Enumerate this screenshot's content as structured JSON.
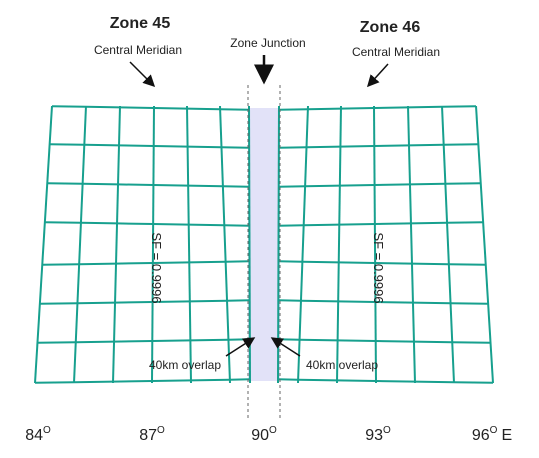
{
  "zones": [
    {
      "title": "Zone 45",
      "meridian_label": "Central Meridian",
      "scale_factor": "SF = 0.9996",
      "overlap_label": "40km overlap"
    },
    {
      "title": "Zone 46",
      "meridian_label": "Central Meridian",
      "scale_factor": "SF = 0.9996",
      "overlap_label": "40km overlap"
    }
  ],
  "junction_label": "Zone Junction",
  "longitudes": [
    {
      "number": "84",
      "degree": "O"
    },
    {
      "number": "87",
      "degree": "O"
    },
    {
      "number": "90",
      "degree": "O"
    },
    {
      "number": "93",
      "degree": "O"
    },
    {
      "number": "96",
      "degree": "O",
      "suffix": "E"
    }
  ]
}
